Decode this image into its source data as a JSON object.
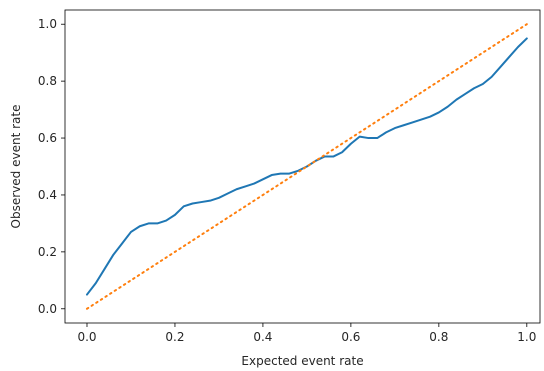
{
  "chart_data": {
    "type": "line",
    "title": "",
    "xlabel": "Expected event rate",
    "ylabel": "Observed event rate",
    "xlim": [
      -0.05,
      1.03
    ],
    "ylim": [
      -0.05,
      1.05
    ],
    "xticks": [
      0.0,
      0.2,
      0.4,
      0.6,
      0.8,
      1.0
    ],
    "xtick_labels": [
      "0.0",
      "0.2",
      "0.4",
      "0.6",
      "0.8",
      "1.0"
    ],
    "yticks": [
      0.0,
      0.2,
      0.4,
      0.6,
      0.8,
      1.0
    ],
    "ytick_labels": [
      "0.0",
      "0.2",
      "0.4",
      "0.6",
      "0.8",
      "1.0"
    ],
    "grid": false,
    "series": [
      {
        "style": "solid",
        "color": "#1f77b4",
        "x": [
          0.0,
          0.02,
          0.04,
          0.06,
          0.08,
          0.1,
          0.12,
          0.14,
          0.16,
          0.18,
          0.2,
          0.22,
          0.24,
          0.26,
          0.28,
          0.3,
          0.32,
          0.34,
          0.36,
          0.38,
          0.4,
          0.42,
          0.44,
          0.46,
          0.48,
          0.5,
          0.52,
          0.54,
          0.56,
          0.58,
          0.6,
          0.62,
          0.64,
          0.66,
          0.68,
          0.7,
          0.72,
          0.74,
          0.76,
          0.78,
          0.8,
          0.82,
          0.84,
          0.86,
          0.88,
          0.9,
          0.92,
          0.94,
          0.96,
          0.98,
          1.0
        ],
        "y": [
          0.05,
          0.09,
          0.14,
          0.19,
          0.23,
          0.27,
          0.29,
          0.3,
          0.3,
          0.31,
          0.33,
          0.36,
          0.37,
          0.375,
          0.38,
          0.39,
          0.405,
          0.42,
          0.43,
          0.44,
          0.455,
          0.47,
          0.475,
          0.475,
          0.485,
          0.5,
          0.52,
          0.535,
          0.535,
          0.55,
          0.58,
          0.605,
          0.6,
          0.6,
          0.62,
          0.635,
          0.645,
          0.655,
          0.665,
          0.675,
          0.69,
          0.71,
          0.735,
          0.755,
          0.775,
          0.79,
          0.815,
          0.85,
          0.885,
          0.92,
          0.95
        ]
      },
      {
        "style": "dotted",
        "color": "#ff7f0e",
        "x": [
          0.0,
          1.0
        ],
        "y": [
          0.0,
          1.0
        ]
      }
    ]
  }
}
